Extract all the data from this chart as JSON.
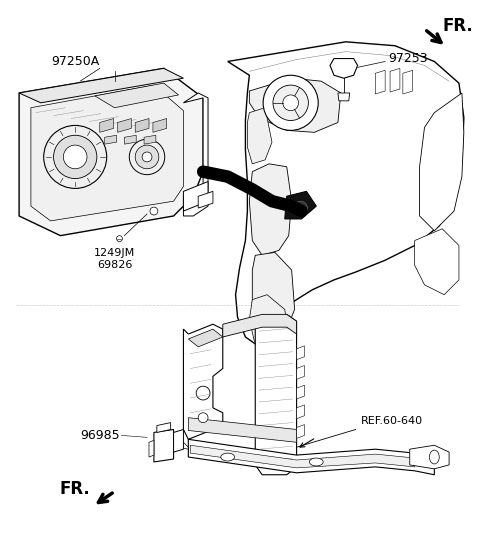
{
  "background_color": "#ffffff",
  "line_color": "#000000",
  "gray_color": "#888888",
  "labels": {
    "part1": "97250A",
    "part2_line1": "1249JM",
    "part2_line2": "69826",
    "part3": "97253",
    "part4": "REF.60-640",
    "part5": "96985",
    "fr1": "FR.",
    "fr2": "FR."
  },
  "figsize": [
    4.8,
    5.51
  ],
  "dpi": 100
}
